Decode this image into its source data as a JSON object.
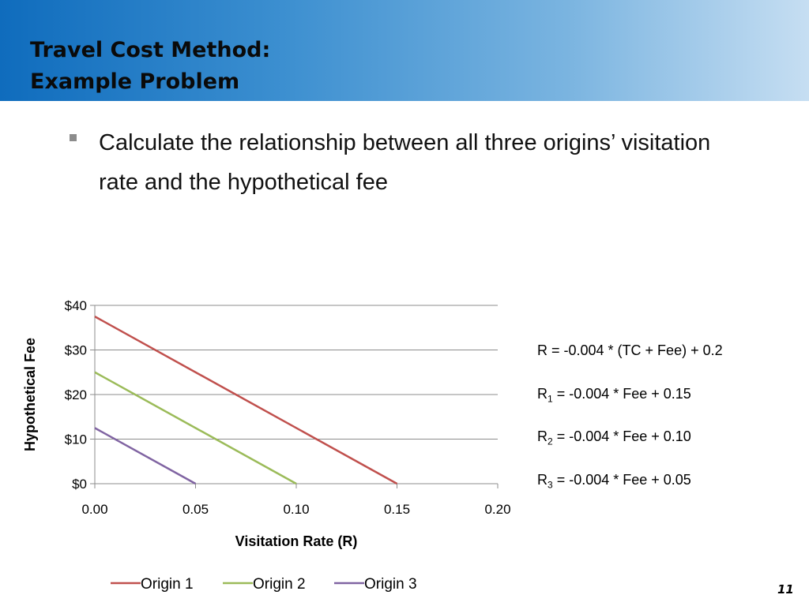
{
  "header": {
    "title_line1": "Travel Cost Method:",
    "title_line2": "Example Problem",
    "gradient_start": "#0f6cbd",
    "gradient_end": "#c6def2"
  },
  "bullet": {
    "marker": "square",
    "text": "Calculate the relationship between all three origins’ visitation rate and the hypothetical fee"
  },
  "chart_data": {
    "type": "line",
    "title": "",
    "xlabel": "Visitation Rate (R)",
    "ylabel": "Hypothetical Fee",
    "xlim": [
      0,
      0.2
    ],
    "ylim": [
      0,
      40
    ],
    "x_ticks": [
      "0.00",
      "0.05",
      "0.10",
      "0.15",
      "0.20"
    ],
    "y_ticks": [
      "$0",
      "$10",
      "$20",
      "$30",
      "$40"
    ],
    "grid": "horizontal",
    "legend_position": "bottom",
    "series": [
      {
        "name": "Origin 1",
        "color": "#c0504d",
        "points": [
          [
            0,
            37.5
          ],
          [
            0.15,
            0
          ]
        ]
      },
      {
        "name": "Origin 2",
        "color": "#9bbb59",
        "points": [
          [
            0,
            25
          ],
          [
            0.1,
            0
          ]
        ]
      },
      {
        "name": "Origin 3",
        "color": "#8064a2",
        "points": [
          [
            0,
            12.5
          ],
          [
            0.05,
            0
          ]
        ]
      }
    ]
  },
  "equations": [
    {
      "lhs": "R",
      "sub": "",
      "rhs": " = -0.004 * (TC + Fee) + 0.2"
    },
    {
      "lhs": "R",
      "sub": "1",
      "rhs": " = -0.004 * Fee + 0.15"
    },
    {
      "lhs": "R",
      "sub": "2",
      "rhs": " = -0.004 * Fee + 0.10"
    },
    {
      "lhs": "R",
      "sub": "3",
      "rhs": " = -0.004 * Fee + 0.05"
    }
  ],
  "footer": {
    "page_number": "11"
  }
}
